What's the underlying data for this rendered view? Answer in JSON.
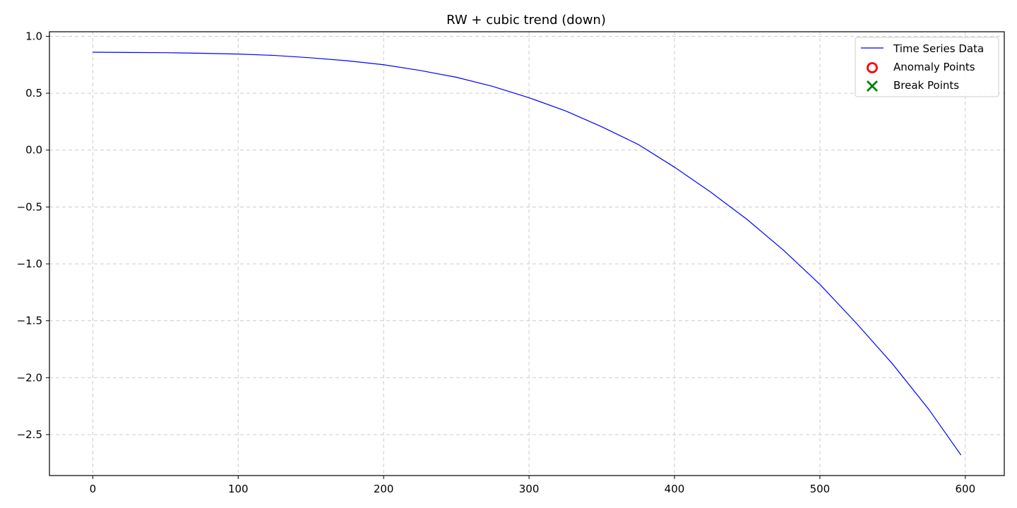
{
  "chart_data": {
    "type": "line",
    "title": "RW + cubic trend (down)",
    "xlabel": "",
    "ylabel": "",
    "xlim": [
      -29.8,
      626.8
    ],
    "ylim": [
      -2.86,
      1.04
    ],
    "xticks": [
      {
        "value": 0,
        "label": "0"
      },
      {
        "value": 100,
        "label": "100"
      },
      {
        "value": 200,
        "label": "200"
      },
      {
        "value": 300,
        "label": "300"
      },
      {
        "value": 400,
        "label": "400"
      },
      {
        "value": 500,
        "label": "500"
      },
      {
        "value": 600,
        "label": "600"
      }
    ],
    "yticks": [
      {
        "value": 1.0,
        "label": "1.0"
      },
      {
        "value": 0.5,
        "label": "0.5"
      },
      {
        "value": 0.0,
        "label": "0.0"
      },
      {
        "value": -0.5,
        "label": "−0.5"
      },
      {
        "value": -1.0,
        "label": "−1.0"
      },
      {
        "value": -1.5,
        "label": "−1.5"
      },
      {
        "value": -2.0,
        "label": "−2.0"
      },
      {
        "value": -2.5,
        "label": "−2.5"
      }
    ],
    "grid": true,
    "legend_position": "top-right",
    "series": [
      {
        "name": "Time Series Data",
        "kind": "line",
        "color": "#0000ff",
        "x": [
          0,
          25,
          50,
          75,
          100,
          125,
          150,
          175,
          200,
          225,
          250,
          275,
          300,
          325,
          350,
          375,
          400,
          425,
          450,
          475,
          500,
          525,
          550,
          575,
          597
        ],
        "y": [
          0.86,
          0.858,
          0.856,
          0.851,
          0.844,
          0.832,
          0.811,
          0.785,
          0.75,
          0.7,
          0.64,
          0.56,
          0.46,
          0.345,
          0.205,
          0.05,
          -0.15,
          -0.37,
          -0.61,
          -0.88,
          -1.18,
          -1.52,
          -1.88,
          -2.28,
          -2.68
        ]
      },
      {
        "name": "Anomaly Points",
        "kind": "scatter",
        "marker": "circle",
        "color": "#ff0000",
        "x": [],
        "y": []
      },
      {
        "name": "Break Points",
        "kind": "scatter",
        "marker": "x",
        "color": "#008000",
        "x": [],
        "y": []
      }
    ]
  }
}
